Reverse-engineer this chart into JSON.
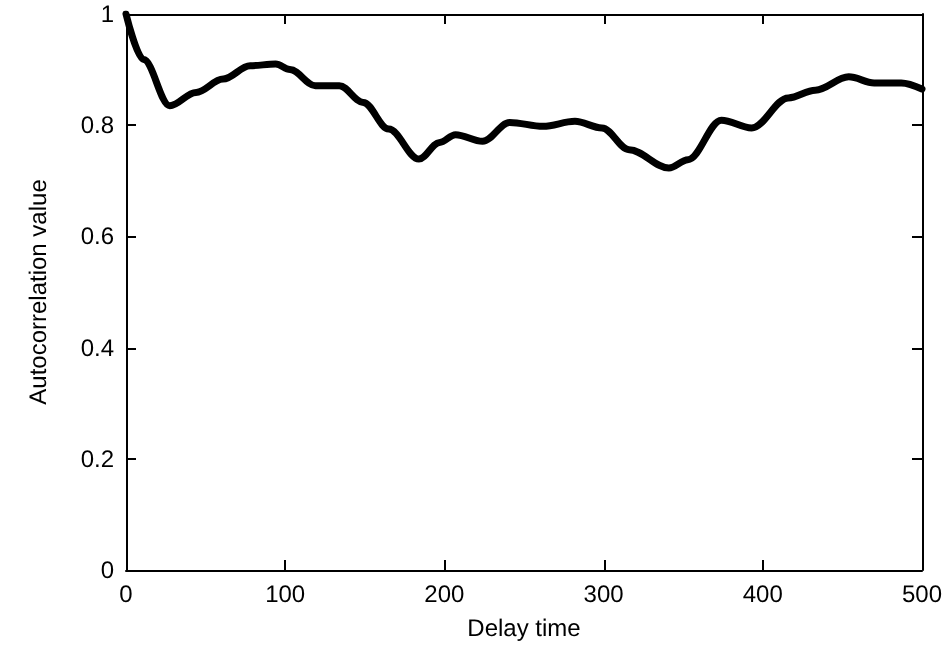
{
  "chart_data": {
    "type": "line",
    "xlabel": "Delay time",
    "ylabel": "Autocorrelation value",
    "x": [
      0,
      11,
      27.5,
      44,
      61,
      78,
      94,
      103,
      119,
      134,
      149,
      165,
      184,
      197,
      207,
      224,
      241,
      262,
      282,
      299,
      316,
      341,
      353,
      374,
      393,
      416,
      433,
      454,
      470,
      487,
      500
    ],
    "series": [
      {
        "color": "#000000",
        "values": [
          1.0,
          0.918,
          0.835,
          0.859,
          0.883,
          0.907,
          0.91,
          0.9,
          0.871,
          0.871,
          0.841,
          0.793,
          0.739,
          0.769,
          0.783,
          0.771,
          0.805,
          0.798,
          0.807,
          0.795,
          0.756,
          0.723,
          0.738,
          0.809,
          0.795,
          0.849,
          0.863,
          0.887,
          0.876,
          0.876,
          0.865
        ]
      }
    ],
    "xlim": [
      0,
      500
    ],
    "xticks": [
      0,
      100,
      200,
      300,
      400,
      500
    ],
    "ylim": [
      0,
      1
    ],
    "yticks": [
      0,
      0.2,
      0.4,
      0.6,
      0.8,
      1
    ],
    "grid": false,
    "marker": "none",
    "line_style": "solid"
  }
}
